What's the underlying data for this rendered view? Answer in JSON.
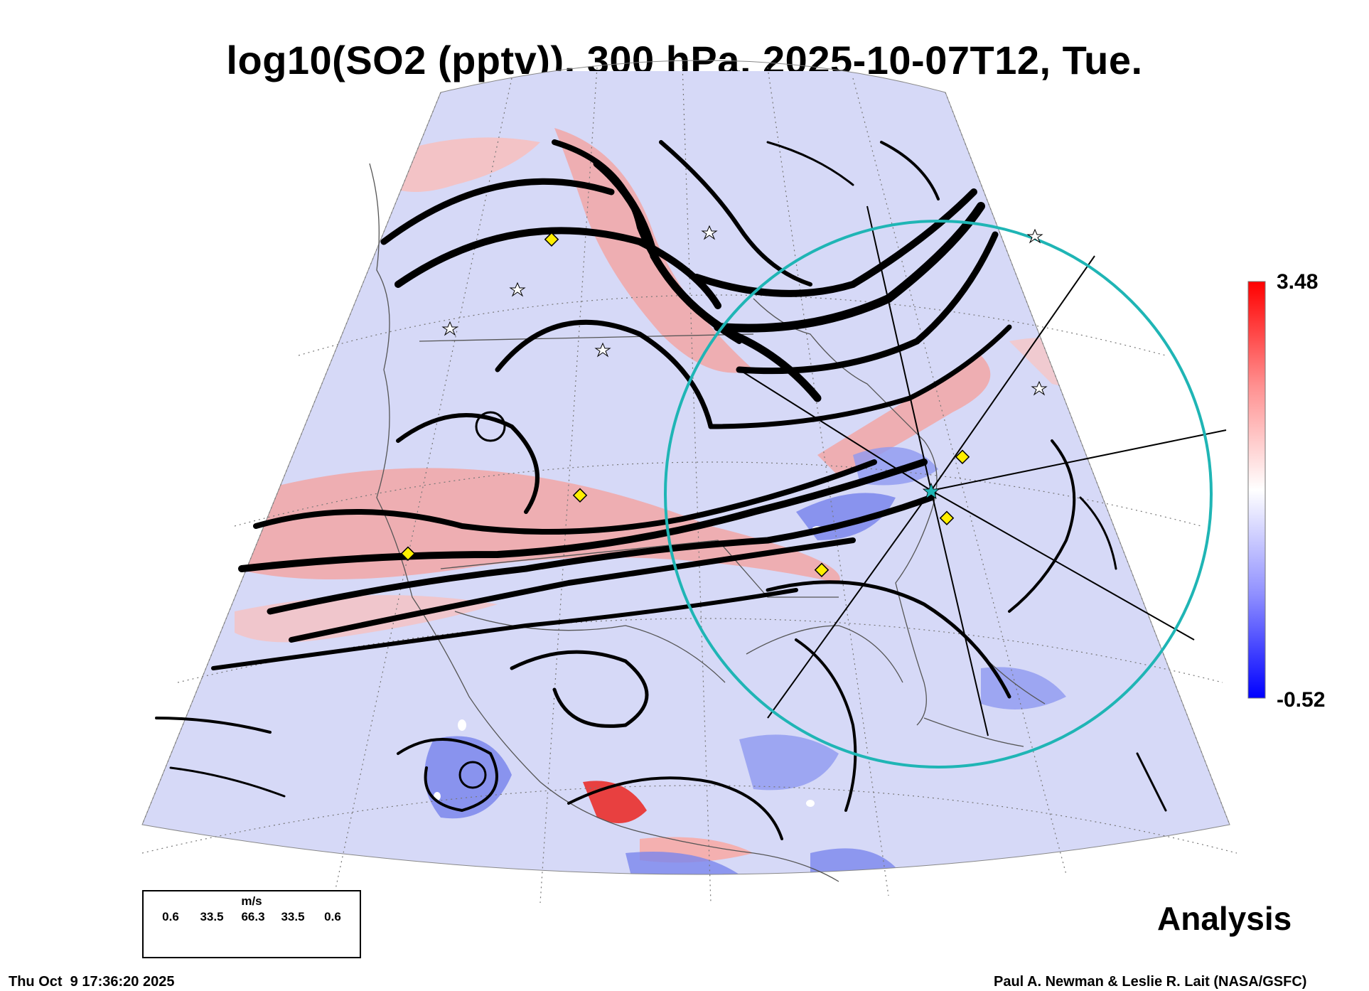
{
  "title": "log10(SO2 (pptv)), 300 hPa, 2025-10-07T12, Tue.",
  "colorbar": {
    "max_label": "3.48",
    "min_label": "-0.52",
    "high_color": "#ff0000",
    "mid_color": "#ffffff",
    "low_color": "#0000ff"
  },
  "wind_legend": {
    "unit": "m/s",
    "values": [
      "0.6",
      "33.5",
      "66.3",
      "33.5",
      "0.6"
    ]
  },
  "product_label": "Analysis",
  "timestamp": "Thu Oct  9 17:36:20 2025",
  "credit": "Paul A. Newman & Leslie R. Lait (NASA/GSFC)",
  "colors": {
    "ring": "#1fb5b5",
    "marker": "#ffee00",
    "streamline": "#000000"
  }
}
